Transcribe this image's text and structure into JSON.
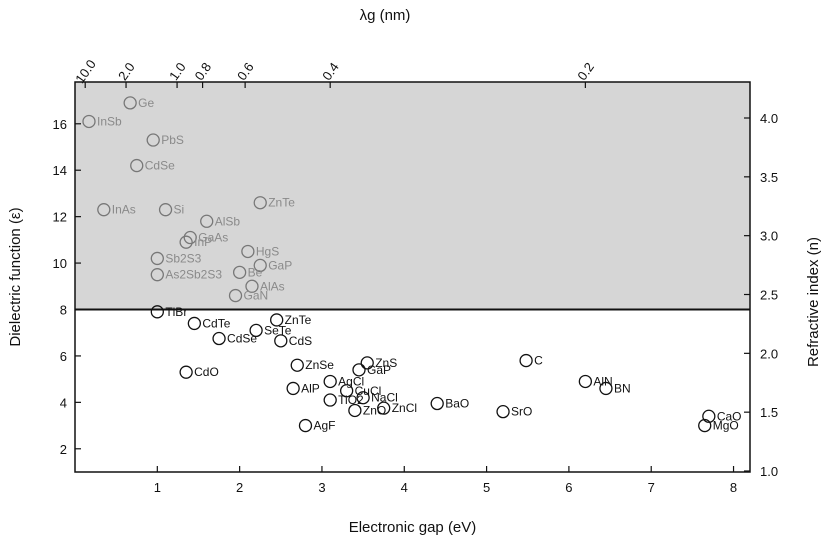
{
  "chart_data": {
    "type": "scatter",
    "xlabel": "Electronic gap (eV)",
    "ylabel": "Dielectric function (ε)",
    "y2label": "Refractive index (n)",
    "x2label": "λg (nm)",
    "xlim": [
      0,
      8.2
    ],
    "ylim": [
      1,
      17.8
    ],
    "x_ticks": [
      "1",
      "2",
      "3",
      "4",
      "5",
      "6",
      "7",
      "8"
    ],
    "y_ticks": [
      "2",
      "4",
      "6",
      "8",
      "10",
      "12",
      "14",
      "16"
    ],
    "y2_ticks": [
      "1.0",
      "1.5",
      "2.0",
      "2.5",
      "3.0",
      "3.5",
      "4.0"
    ],
    "x2_ticks": [
      "10.0",
      "2.0",
      "1.0",
      "0.8",
      "0.6",
      "0.4",
      "0.2"
    ],
    "shaded_region": {
      "y_min": 8,
      "y_max": 17.8,
      "color": "#d6d6d6"
    },
    "marker": "open-circle",
    "points": [
      {
        "label": "InSb",
        "x": 0.17,
        "y": 16.1
      },
      {
        "label": "Ge",
        "x": 0.67,
        "y": 16.9
      },
      {
        "label": "PbS",
        "x": 0.95,
        "y": 15.3
      },
      {
        "label": "CdSe",
        "x": 0.75,
        "y": 14.2
      },
      {
        "label": "InAs",
        "x": 0.35,
        "y": 12.3
      },
      {
        "label": "Si",
        "x": 1.1,
        "y": 12.3
      },
      {
        "label": "AlSb",
        "x": 1.6,
        "y": 11.8
      },
      {
        "label": "ZnTe",
        "x": 2.25,
        "y": 12.6
      },
      {
        "label": "GaAs",
        "x": 1.4,
        "y": 11.1
      },
      {
        "label": "InP",
        "x": 1.35,
        "y": 10.9
      },
      {
        "label": "HgS",
        "x": 2.1,
        "y": 10.5
      },
      {
        "label": "Sb2S3",
        "x": 1.0,
        "y": 10.2
      },
      {
        "label": "As2Sb2S3",
        "x": 1.0,
        "y": 9.5
      },
      {
        "label": "GaP",
        "x": 2.25,
        "y": 9.9
      },
      {
        "label": "Be",
        "x": 2.0,
        "y": 9.6
      },
      {
        "label": "AlAs",
        "x": 2.15,
        "y": 9.0
      },
      {
        "label": "GaN",
        "x": 1.95,
        "y": 8.6
      },
      {
        "label": "TlBr",
        "x": 1.0,
        "y": 7.9
      },
      {
        "label": "CdTe",
        "x": 1.45,
        "y": 7.4
      },
      {
        "label": "ZnTe",
        "x": 2.45,
        "y": 7.55
      },
      {
        "label": "SeTe",
        "x": 2.2,
        "y": 7.1
      },
      {
        "label": "CdSe",
        "x": 1.75,
        "y": 6.75
      },
      {
        "label": "CdS",
        "x": 2.5,
        "y": 6.65
      },
      {
        "label": "ZnSe",
        "x": 2.7,
        "y": 5.6
      },
      {
        "label": "ZnS",
        "x": 3.55,
        "y": 5.7
      },
      {
        "label": "GaP",
        "x": 3.45,
        "y": 5.4
      },
      {
        "label": "CdO",
        "x": 1.35,
        "y": 5.3
      },
      {
        "label": "C",
        "x": 5.48,
        "y": 5.8
      },
      {
        "label": "AlN",
        "x": 6.2,
        "y": 4.9
      },
      {
        "label": "BN",
        "x": 6.45,
        "y": 4.6
      },
      {
        "label": "AlP",
        "x": 2.65,
        "y": 4.6
      },
      {
        "label": "AgCl",
        "x": 3.1,
        "y": 4.9
      },
      {
        "label": "CuCl",
        "x": 3.3,
        "y": 4.5
      },
      {
        "label": "TiO2",
        "x": 3.1,
        "y": 4.1
      },
      {
        "label": "NaCl",
        "x": 3.5,
        "y": 4.2
      },
      {
        "label": "ZnO",
        "x": 3.4,
        "y": 3.65
      },
      {
        "label": "ZnCl",
        "x": 3.75,
        "y": 3.75
      },
      {
        "label": "BaO",
        "x": 4.4,
        "y": 3.95
      },
      {
        "label": "SrO",
        "x": 5.2,
        "y": 3.6
      },
      {
        "label": "CaO",
        "x": 7.7,
        "y": 3.4
      },
      {
        "label": "MgO",
        "x": 7.65,
        "y": 3.0
      },
      {
        "label": "AgF",
        "x": 2.8,
        "y": 3.0
      }
    ]
  }
}
